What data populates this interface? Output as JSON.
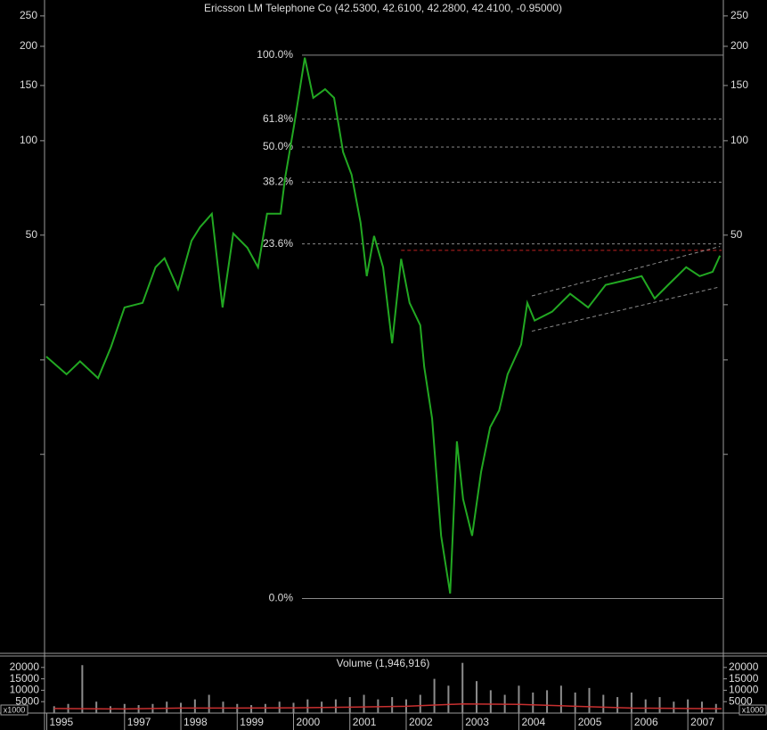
{
  "chart_data": [
    {
      "type": "line",
      "title": "Ericsson LM Telephone Co (42.5300, 42.6100, 42.2800, 42.4100, -0.95000)",
      "log_scale": true,
      "xlim": [
        1995.58,
        2007.63
      ],
      "xticks": [
        {
          "value": 1995.62,
          "label": "1995"
        },
        1997,
        1998,
        1999,
        2000,
        2001,
        2002,
        2003,
        2004,
        2005,
        2006,
        2007
      ],
      "ylim": [
        2.32,
        281
      ],
      "yticks": [
        250,
        200,
        150,
        100,
        50
      ],
      "minor_yticks": [
        30,
        20,
        10
      ],
      "x": [
        1995.61,
        1995.97,
        1996.21,
        1996.53,
        1996.76,
        1997.0,
        1997.32,
        1997.55,
        1997.71,
        1997.95,
        1998.19,
        1998.34,
        1998.55,
        1998.74,
        1998.93,
        1999.18,
        1999.37,
        1999.53,
        1999.77,
        1999.85,
        2000.01,
        2000.2,
        2000.35,
        2000.56,
        2000.72,
        2000.88,
        2001.03,
        2001.19,
        2001.3,
        2001.43,
        2001.59,
        2001.75,
        2001.91,
        2002.06,
        2002.25,
        2002.32,
        2002.46,
        2002.62,
        2002.78,
        2002.9,
        2003.01,
        2003.17,
        2003.33,
        2003.49,
        2003.65,
        2003.8,
        2004.04,
        2004.15,
        2004.28,
        2004.59,
        2004.91,
        2005.23,
        2005.54,
        2005.86,
        2006.18,
        2006.41,
        2006.65,
        2006.97,
        2007.21,
        2007.44,
        2007.57
      ],
      "series": [
        {
          "color": "#22a822",
          "values": [
            20.5,
            18,
            19.8,
            17.5,
            22,
            29.4,
            30.4,
            39.5,
            42.2,
            33.6,
            48,
            53,
            58.5,
            29.4,
            50.6,
            45.6,
            39.5,
            58.5,
            58.5,
            76,
            112,
            184,
            137,
            146,
            137,
            92,
            78,
            54.8,
            37,
            49.7,
            39.5,
            22.6,
            42,
            30.4,
            25.8,
            19,
            13,
            5.5,
            3.6,
            11,
            7.2,
            5.5,
            8.8,
            12.2,
            13.8,
            18,
            22.4,
            30.4,
            26.7,
            28.5,
            32.5,
            29.4,
            34.7,
            35.8,
            37,
            31.4,
            34.7,
            39.5,
            37,
            38.2,
            43
          ]
        }
      ],
      "fibonacci": {
        "high": 187.5,
        "low": 3.47,
        "start": 2000.15,
        "color": "#8a8a8a",
        "levels": [
          100,
          61.8,
          50,
          38.2,
          23.6,
          0
        ],
        "value_labels": [
          "100.0%",
          "61.8%",
          "50.0%",
          "38.2%",
          "23.6%",
          "0.0%"
        ]
      },
      "trend_lines": [
        {
          "color": "#c02020",
          "x": [
            2001.91,
            2007.6
          ],
          "values": [
            44.7,
            44.7
          ]
        },
        {
          "color": "#8a8a8a",
          "x": [
            2004.23,
            2007.57
          ],
          "values": [
            32.0,
            46.0
          ]
        },
        {
          "color": "#8a8a8a",
          "x": [
            2004.23,
            2007.57
          ],
          "values": [
            24.7,
            34.2
          ]
        }
      ]
    },
    {
      "type": "bar",
      "title": "Volume (1,946,916)",
      "unit_label": "x1000",
      "color": "#8c8c8c",
      "ylim": [
        0,
        25000
      ],
      "yticks": [
        20000,
        15000,
        10000,
        5000
      ],
      "x": [
        1995.75,
        1996.0,
        1996.25,
        1996.5,
        1996.75,
        1997.0,
        1997.25,
        1997.5,
        1997.75,
        1998.0,
        1998.25,
        1998.5,
        1998.75,
        1999.0,
        1999.25,
        1999.5,
        1999.75,
        2000.0,
        2000.25,
        2000.5,
        2000.75,
        2001.0,
        2001.25,
        2001.5,
        2001.75,
        2002.0,
        2002.25,
        2002.5,
        2002.75,
        2003.0,
        2003.25,
        2003.5,
        2003.75,
        2004.0,
        2004.25,
        2004.5,
        2004.75,
        2005.0,
        2005.25,
        2005.5,
        2005.75,
        2006.0,
        2006.25,
        2006.5,
        2006.75,
        2007.0,
        2007.25,
        2007.5
      ],
      "values": [
        3000,
        4000,
        21000,
        5000,
        3000,
        4000,
        3500,
        4000,
        5000,
        4500,
        6000,
        8000,
        5000,
        4000,
        3500,
        4000,
        5000,
        4500,
        6000,
        5000,
        6000,
        7000,
        8000,
        6000,
        7000,
        6000,
        8000,
        15000,
        12000,
        22000,
        14000,
        10000,
        8000,
        12000,
        9000,
        10000,
        12000,
        9000,
        11000,
        8000,
        7000,
        9000,
        6000,
        7000,
        5000,
        6000,
        5000,
        4000
      ],
      "moving_average": {
        "color": "#c83030",
        "x": [
          1995.75,
          1997.0,
          1998.0,
          1999.0,
          2000.0,
          2001.0,
          2002.0,
          2003.0,
          2004.0,
          2005.0,
          2006.0,
          2007.0,
          2007.6
        ],
        "values": [
          2000,
          1800,
          2200,
          2200,
          2300,
          2600,
          3000,
          4000,
          3800,
          3000,
          2200,
          2000,
          1900
        ]
      }
    }
  ]
}
